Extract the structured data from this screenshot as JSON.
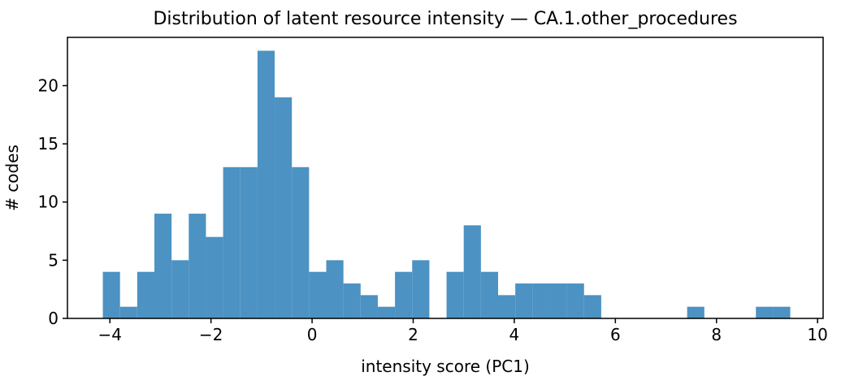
{
  "chart_data": {
    "type": "bar",
    "subtype": "histogram",
    "title": "Distribution of latent resource intensity — CA.1.other_procedures",
    "xlabel": "intensity score (PC1)",
    "ylabel": "# codes",
    "bin_start": -4.14,
    "bin_width": 0.34,
    "counts": [
      4,
      1,
      4,
      9,
      5,
      9,
      7,
      13,
      13,
      23,
      19,
      13,
      4,
      5,
      3,
      2,
      1,
      4,
      5,
      0,
      4,
      8,
      4,
      2,
      3,
      3,
      3,
      3,
      2,
      0,
      0,
      0,
      0,
      0,
      1,
      0,
      0,
      0,
      1,
      1
    ],
    "xlim": [
      -4.84,
      10.11
    ],
    "ylim": [
      0,
      24.15
    ],
    "xticks": {
      "values": [
        -4,
        -2,
        0,
        2,
        4,
        6,
        8,
        10
      ],
      "labels": [
        "−4",
        "−2",
        "0",
        "2",
        "4",
        "6",
        "8",
        "10"
      ]
    },
    "yticks": {
      "values": [
        0,
        5,
        10,
        15,
        20
      ],
      "labels": [
        "0",
        "5",
        "10",
        "15",
        "20"
      ]
    },
    "bar_color": "#4c92c3",
    "axis_color": "#000000",
    "background": "#ffffff",
    "grid": false,
    "legend": null
  }
}
